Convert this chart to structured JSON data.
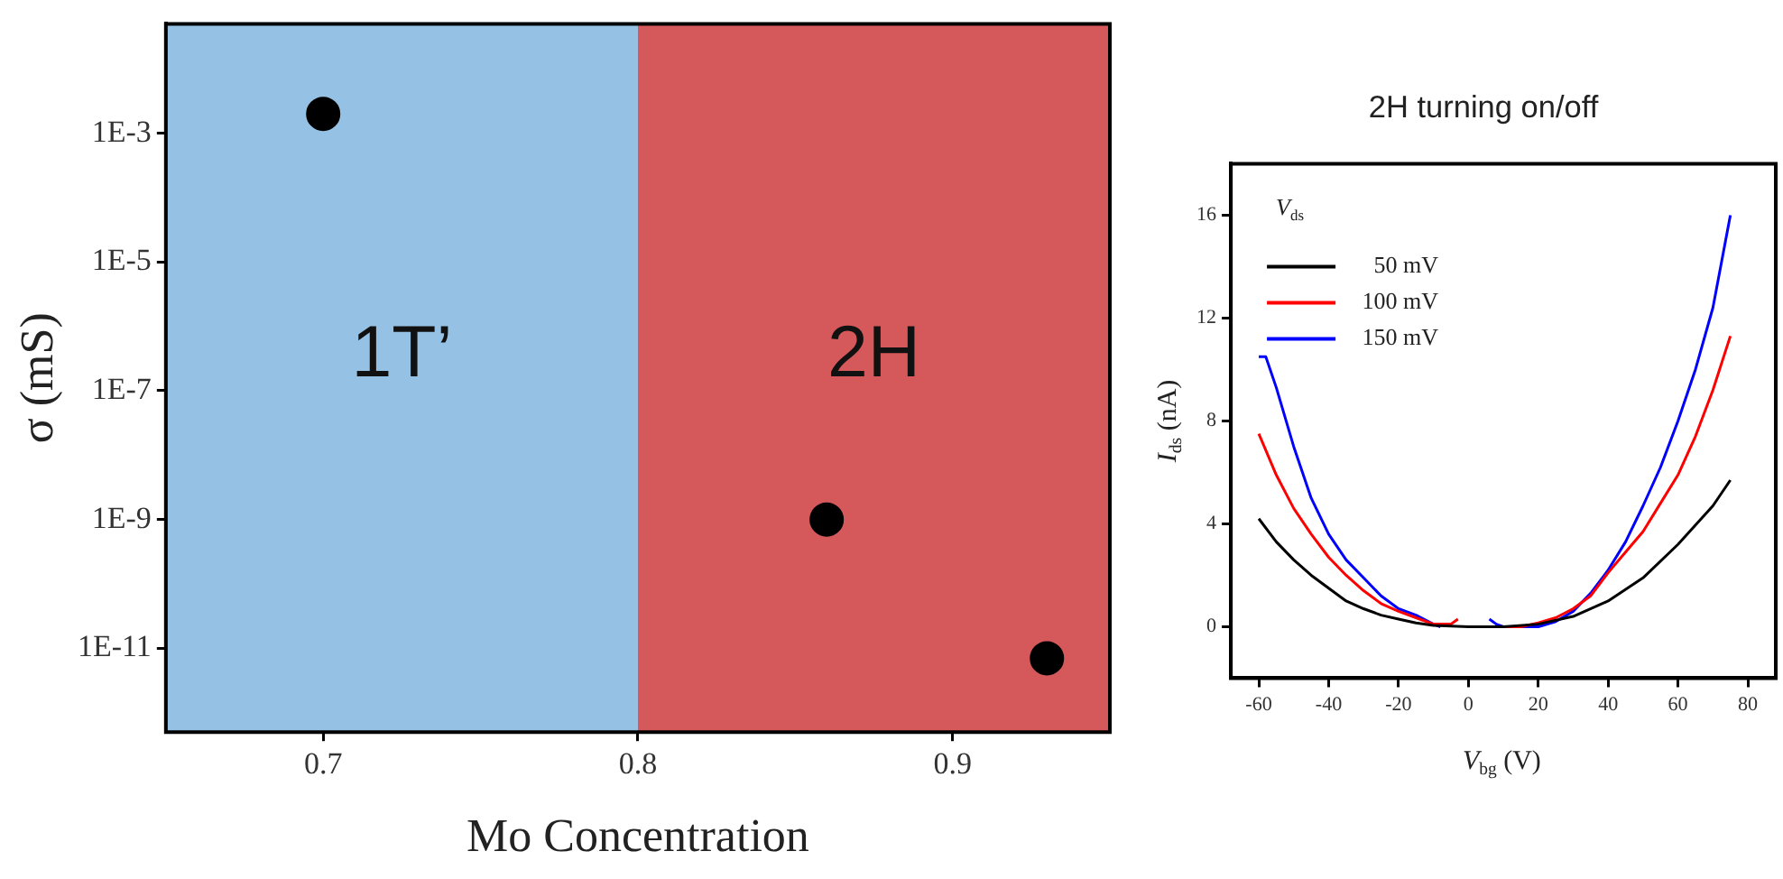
{
  "chart_data": [
    {
      "type": "scatter",
      "xlabel": "Mo Concentration",
      "ylabel": "σ (mS)",
      "x": [
        0.7,
        0.86,
        0.93
      ],
      "values": [
        0.002,
        1e-09,
        7e-12
      ],
      "color": "#000000",
      "marker": "circle",
      "log": "y",
      "xlim": [
        0.65,
        0.95
      ],
      "xticks": [
        0.7,
        0.8,
        0.9
      ],
      "ylim": [
        5e-13,
        0.05
      ],
      "yticks": [
        {
          "value": 0.001,
          "label": "1E-3"
        },
        {
          "value": 1e-05,
          "label": "1E-5"
        },
        {
          "value": 1e-07,
          "label": "1E-7"
        },
        {
          "value": 1e-09,
          "label": "1E-9"
        },
        {
          "value": 1e-11,
          "label": "1E-11"
        }
      ],
      "bands": [
        {
          "axis": "x",
          "from": 0.65,
          "to": 0.8,
          "label": "1T’",
          "color": "#95c2e4"
        },
        {
          "axis": "x",
          "from": 0.8,
          "to": 0.95,
          "label": "2H",
          "color": "#d5585a"
        }
      ]
    },
    {
      "type": "line",
      "title": "2H turning on/off",
      "xlabel": "V$_{bg}$ (V)",
      "ylabel": "I$_{ds}$ (nA)",
      "legend_title": "V$_{ds}$",
      "legend": "top left",
      "marker": "none",
      "xlim": [
        -68,
        88
      ],
      "xticks": [
        -60,
        -40,
        -20,
        0,
        20,
        40,
        60,
        80
      ],
      "ylim": [
        -2,
        18
      ],
      "yticks": [
        0,
        4,
        8,
        12,
        16
      ],
      "series": [
        {
          "name": "50 mV",
          "color": "#000000",
          "x": [
            -60,
            -55,
            -50,
            -45,
            -40,
            -35,
            -30,
            -25,
            -20,
            -15,
            -10,
            0,
            6,
            10,
            20,
            30,
            40,
            50,
            60,
            70,
            75
          ],
          "values": [
            4.2,
            3.3,
            2.6,
            2.0,
            1.5,
            1.0,
            0.7,
            0.45,
            0.3,
            0.15,
            0.05,
            0,
            0,
            0,
            0.1,
            0.4,
            1.0,
            1.9,
            3.2,
            4.7,
            5.7
          ]
        },
        {
          "name": "100 mV",
          "color": "#ff0000",
          "x": [
            -60,
            -55,
            -50,
            -45,
            -40,
            -35,
            -30,
            -25,
            -20,
            -15,
            -10,
            -5,
            -3,
            3,
            10,
            15,
            20,
            25,
            30,
            35,
            40,
            45,
            50,
            55,
            60,
            65,
            70,
            75
          ],
          "values": [
            7.5,
            5.9,
            4.6,
            3.6,
            2.7,
            2.0,
            1.4,
            0.9,
            0.6,
            0.35,
            0.1,
            0.1,
            0.3,
            null,
            0,
            0,
            0.15,
            0.35,
            0.7,
            1.2,
            2.1,
            2.9,
            3.7,
            4.8,
            5.9,
            7.4,
            9.2,
            11.3
          ]
        },
        {
          "name": "150 mV",
          "color": "#0000ff",
          "x": [
            -60,
            -58,
            -55,
            -50,
            -45,
            -40,
            -35,
            -30,
            -25,
            -20,
            -15,
            -10,
            -8,
            0,
            6,
            8,
            10,
            20,
            25,
            30,
            35,
            40,
            45,
            50,
            55,
            60,
            65,
            70,
            75
          ],
          "values": [
            10.5,
            10.5,
            9.3,
            7.0,
            5.0,
            3.6,
            2.6,
            1.9,
            1.2,
            0.7,
            0.45,
            0.1,
            0,
            null,
            0.3,
            0.1,
            0,
            0,
            0.2,
            0.6,
            1.3,
            2.2,
            3.3,
            4.7,
            6.2,
            8.0,
            10.0,
            12.4,
            16
          ]
        }
      ]
    }
  ]
}
